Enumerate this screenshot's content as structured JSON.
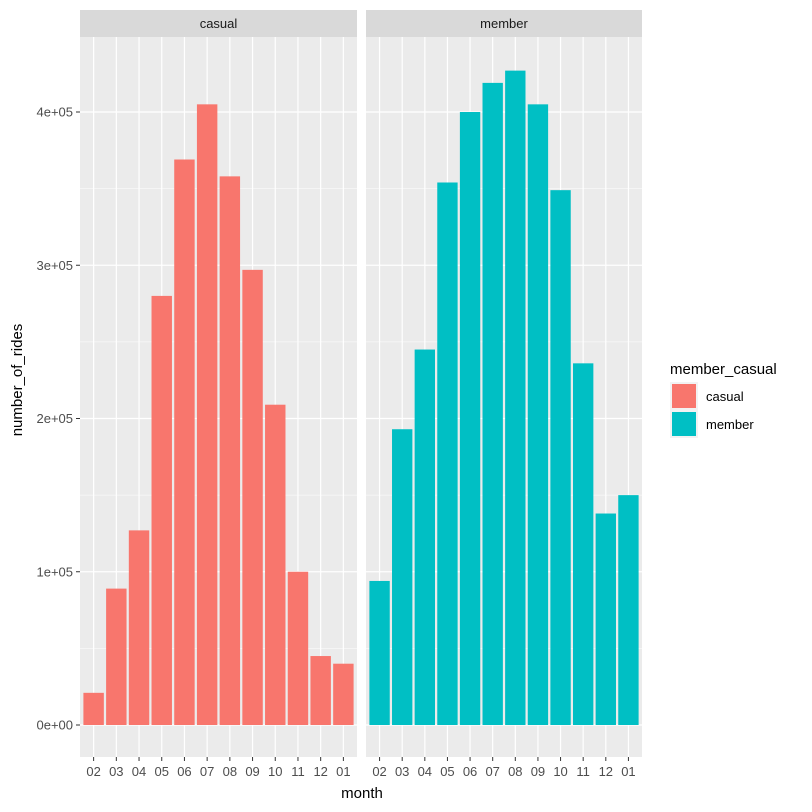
{
  "chart_data": {
    "type": "bar",
    "facet_by": "member_casual",
    "categories": [
      "02",
      "03",
      "04",
      "05",
      "06",
      "07",
      "08",
      "09",
      "10",
      "11",
      "12",
      "01"
    ],
    "xlabel": "month",
    "ylabel": "number_of_rides",
    "ylim": [
      0,
      430000
    ],
    "yticks": [
      {
        "value": 0,
        "label": "0e+00"
      },
      {
        "value": 100000,
        "label": "1e+05"
      },
      {
        "value": 200000,
        "label": "2e+05"
      },
      {
        "value": 300000,
        "label": "3e+05"
      },
      {
        "value": 400000,
        "label": "4e+05"
      }
    ],
    "grid": true,
    "legend": {
      "title": "member_casual",
      "placement": "right",
      "entries": [
        {
          "label": "casual",
          "color": "#F8766D"
        },
        {
          "label": "member",
          "color": "#00BFC4"
        }
      ]
    },
    "series": [
      {
        "name": "casual",
        "color": "#F8766D",
        "values": [
          21000,
          89000,
          127000,
          280000,
          369000,
          405000,
          358000,
          297000,
          209000,
          100000,
          45000,
          40000
        ]
      },
      {
        "name": "member",
        "color": "#00BFC4",
        "values": [
          94000,
          193000,
          245000,
          354000,
          400000,
          419000,
          427000,
          405000,
          349000,
          236000,
          138000,
          150000
        ]
      }
    ],
    "panels": [
      {
        "label": "casual",
        "series": "casual"
      },
      {
        "label": "member",
        "series": "member"
      }
    ]
  }
}
